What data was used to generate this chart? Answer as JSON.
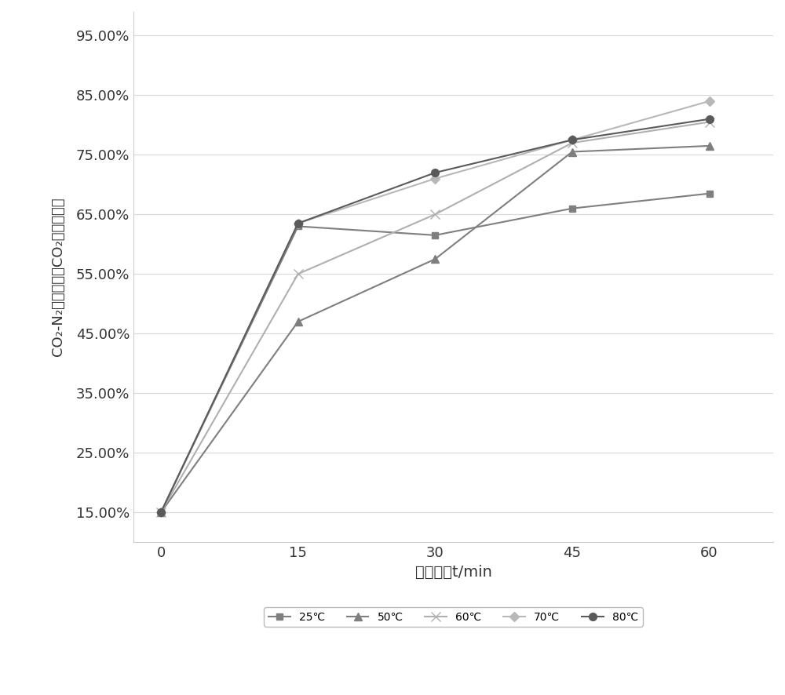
{
  "x": [
    0,
    15,
    30,
    45,
    60
  ],
  "series": {
    "25℃": [
      0.15,
      0.63,
      0.615,
      0.66,
      0.685
    ],
    "50℃": [
      0.15,
      0.47,
      0.575,
      0.755,
      0.765
    ],
    "60℃": [
      0.15,
      0.55,
      0.65,
      0.77,
      0.805
    ],
    "70℃": [
      0.15,
      0.635,
      0.71,
      0.775,
      0.84
    ],
    "80℃": [
      0.15,
      0.635,
      0.72,
      0.775,
      0.81
    ]
  },
  "colors": {
    "25℃": "#7f7f7f",
    "50℃": "#7f7f7f",
    "60℃": "#b0b0b0",
    "70℃": "#b8b8b8",
    "80℃": "#5a5a5a"
  },
  "markers": {
    "25℃": "s",
    "50℃": "^",
    "60℃": "x",
    "70℃": "D",
    "80℃": "o"
  },
  "series_order": [
    "25℃",
    "50℃",
    "60℃",
    "70℃",
    "80℃"
  ],
  "xlabel": "分离时间t/min",
  "ylabel": "CO₂-N₂混合气体中CO₂浓度百分比",
  "ylim": [
    0.1,
    0.99
  ],
  "yticks": [
    0.15,
    0.25,
    0.35,
    0.45,
    0.55,
    0.65,
    0.75,
    0.85,
    0.95
  ],
  "xticks": [
    0,
    15,
    30,
    45,
    60
  ],
  "background_color": "#ffffff",
  "plot_bg_color": "#ffffff",
  "grid_color": "#d8d8d8",
  "marker_sizes": {
    "25℃": 6,
    "50℃": 7,
    "60℃": 9,
    "70℃": 6,
    "80℃": 7
  },
  "linewidths": {
    "25℃": 1.5,
    "50℃": 1.5,
    "60℃": 1.5,
    "70℃": 1.5,
    "80℃": 1.5
  }
}
